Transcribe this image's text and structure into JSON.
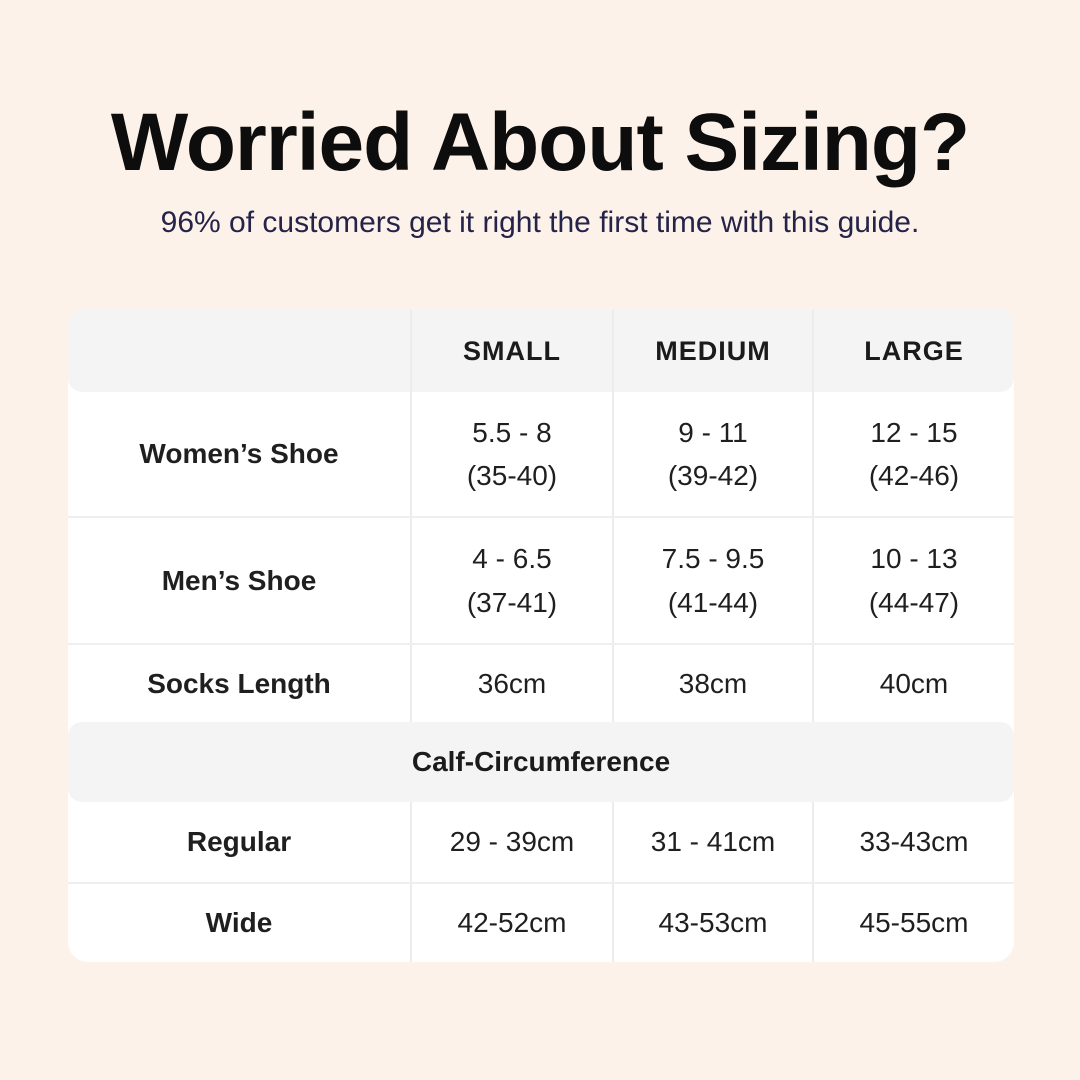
{
  "title": "Worried About Sizing?",
  "subtitle": "96% of customers get it right the first time with this guide.",
  "colors": {
    "background": "#fcf2ea",
    "card": "#ffffff",
    "header_bg": "#f5f4f4",
    "banner_bg": "#f5f4f4",
    "divider": "#ececec",
    "title_text": "#0d0d0d",
    "subtitle_text": "#252348",
    "table_text": "#1f1f1f"
  },
  "table": {
    "columns": [
      "",
      "SMALL",
      "MEDIUM",
      "LARGE"
    ],
    "rows": [
      {
        "label": "Women’s Shoe",
        "cells": [
          [
            "5.5 - 8",
            "(35-40)"
          ],
          [
            "9 - 11",
            "(39-42)"
          ],
          [
            "12 - 15",
            "(42-46)"
          ]
        ]
      },
      {
        "label": "Men’s Shoe",
        "cells": [
          [
            "4 - 6.5",
            "(37-41)"
          ],
          [
            "7.5 - 9.5",
            "(41-44)"
          ],
          [
            "10 - 13",
            "(44-47)"
          ]
        ]
      },
      {
        "label": "Socks Length",
        "cells": [
          [
            "36cm"
          ],
          [
            "38cm"
          ],
          [
            "40cm"
          ]
        ]
      }
    ],
    "section_label": "Calf-Circumference",
    "section_rows": [
      {
        "label": "Regular",
        "cells": [
          "29 - 39cm",
          "31 - 41cm",
          "33-43cm"
        ]
      },
      {
        "label": "Wide",
        "cells": [
          "42-52cm",
          "43-53cm",
          "45-55cm"
        ]
      }
    ]
  }
}
